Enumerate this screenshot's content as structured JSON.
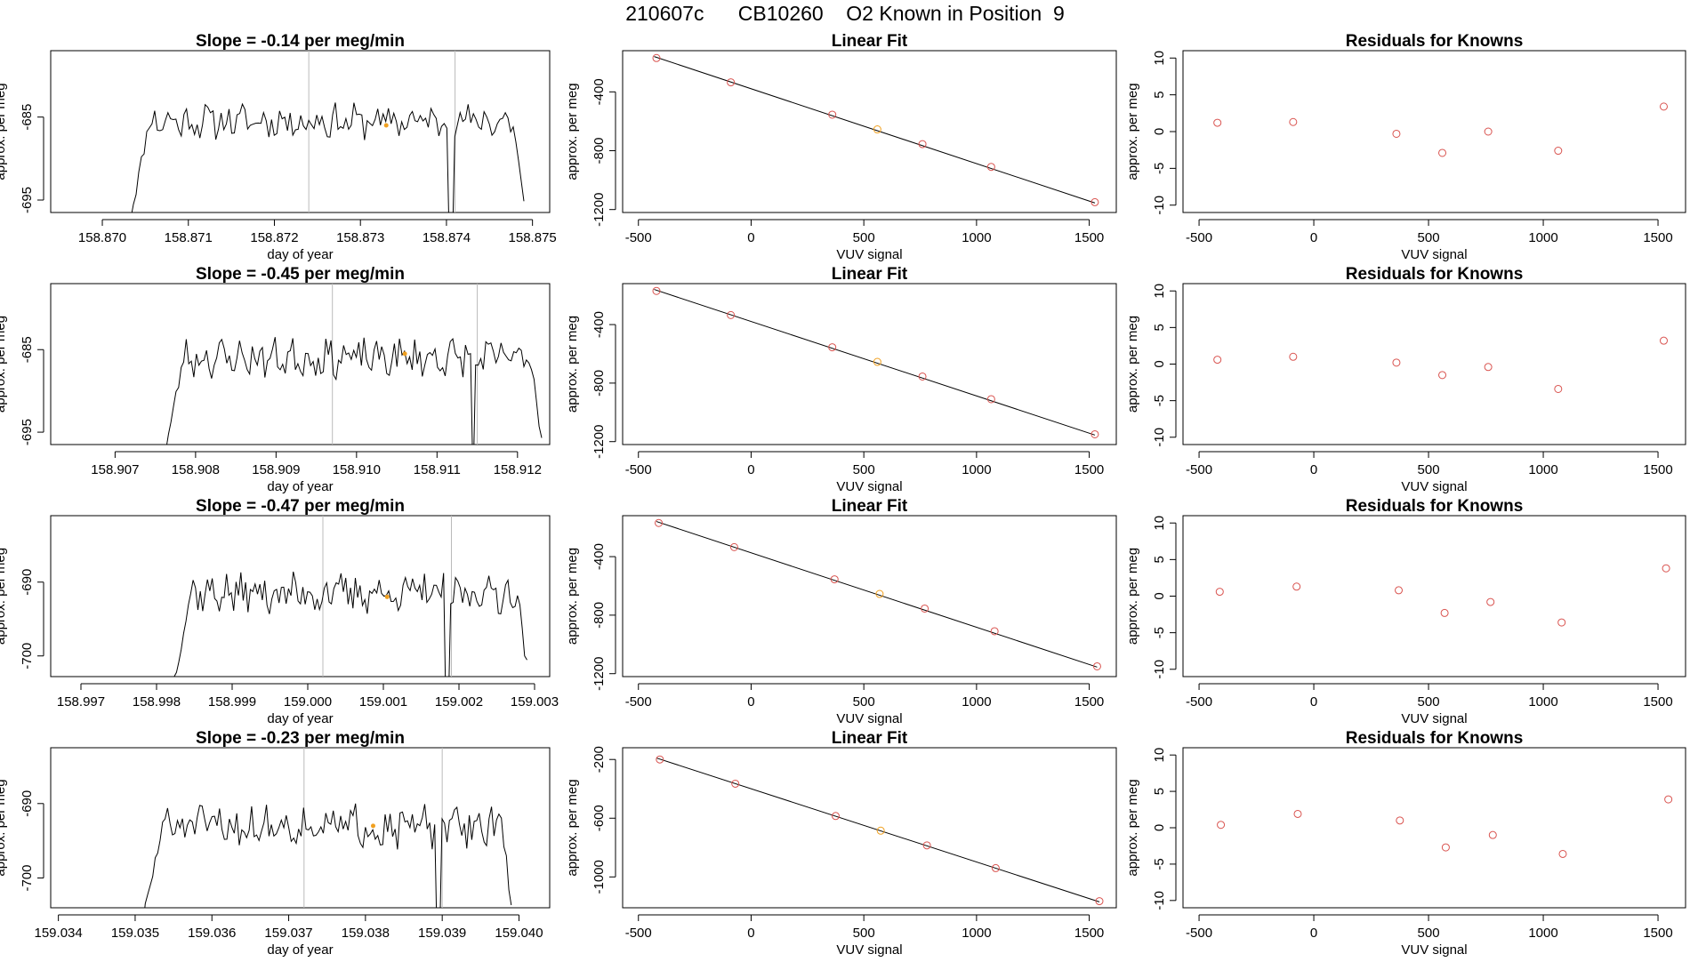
{
  "figure": {
    "title": "210607c      CB10260    O2 Known in Position  9"
  },
  "chart_data": [
    {
      "row": 1,
      "time_series": {
        "type": "line",
        "title": "Slope =  -0.14  per meg/min",
        "xlabel": "day of year",
        "ylabel": "approx. per meg",
        "xlim": [
          158.8694,
          158.8752
        ],
        "ylim": [
          -696.5,
          -677
        ],
        "xticks": [
          "158.870",
          "158.871",
          "158.872",
          "158.873",
          "158.874",
          "158.875"
        ],
        "yticks": [
          "-685",
          "-695"
        ],
        "vlines": [
          158.8724,
          158.8741
        ],
        "highlight": {
          "x": 158.8733,
          "y": -686
        },
        "data": {
          "x_start": 158.8703,
          "x_end": 158.8749,
          "n": 150,
          "baseline": -685.5,
          "amplitude": 1.7,
          "seed": 11,
          "dropout": 158.87405
        }
      },
      "linear_fit": {
        "type": "scatter",
        "title": "Linear Fit",
        "xlabel": "VUV signal",
        "ylabel": "approx. per meg",
        "xlim": [
          -570,
          1620
        ],
        "ylim": [
          -1220,
          -120
        ],
        "xticks": [
          -500,
          0,
          500,
          1000,
          1500
        ],
        "yticks": [
          -400,
          -800,
          -1200
        ],
        "points": [
          {
            "x": -420,
            "y": -170
          },
          {
            "x": -90,
            "y": -335
          },
          {
            "x": 360,
            "y": -555
          },
          {
            "x": 560,
            "y": -655
          },
          {
            "x": 760,
            "y": -755
          },
          {
            "x": 1065,
            "y": -910
          },
          {
            "x": 1525,
            "y": -1150
          }
        ],
        "highlight_index": 3,
        "fit_line": [
          [
            -430,
            -160
          ],
          [
            1525,
            -1155
          ]
        ]
      },
      "residuals": {
        "type": "scatter",
        "title": "Residuals for Knowns",
        "xlabel": "VUV signal",
        "ylabel": "approx. per meg",
        "xlim": [
          -570,
          1620
        ],
        "ylim": [
          -11,
          11
        ],
        "xticks": [
          -500,
          0,
          500,
          1000,
          1500
        ],
        "yticks": [
          10,
          5,
          0,
          -5,
          -10
        ],
        "points": [
          {
            "x": -420,
            "y": 1.2
          },
          {
            "x": -90,
            "y": 1.3
          },
          {
            "x": 360,
            "y": -0.3
          },
          {
            "x": 560,
            "y": -2.9
          },
          {
            "x": 760,
            "y": 0.0
          },
          {
            "x": 1065,
            "y": -2.6
          },
          {
            "x": 1525,
            "y": 3.4
          }
        ]
      }
    },
    {
      "row": 2,
      "time_series": {
        "type": "line",
        "title": "Slope =  -0.45  per meg/min",
        "xlabel": "day of year",
        "ylabel": "approx. per meg",
        "xlim": [
          158.9062,
          158.9124
        ],
        "ylim": [
          -696.5,
          -677
        ],
        "xticks": [
          "158.907",
          "158.908",
          "158.909",
          "158.910",
          "158.911",
          "158.912"
        ],
        "yticks": [
          "-685",
          "-695"
        ],
        "vlines": [
          158.9097,
          158.9115
        ],
        "highlight": {
          "x": 158.9106,
          "y": -685.5
        },
        "data": {
          "x_start": 158.9076,
          "x_end": 158.9123,
          "n": 150,
          "baseline": -686,
          "amplitude": 1.9,
          "seed": 23,
          "dropout": 158.91145
        }
      },
      "linear_fit": {
        "type": "scatter",
        "title": "Linear Fit",
        "xlabel": "VUV signal",
        "ylabel": "approx. per meg",
        "xlim": [
          -570,
          1620
        ],
        "ylim": [
          -1220,
          -120
        ],
        "xticks": [
          -500,
          0,
          500,
          1000,
          1500
        ],
        "yticks": [
          -400,
          -800,
          -1200
        ],
        "points": [
          {
            "x": -420,
            "y": -170
          },
          {
            "x": -90,
            "y": -335
          },
          {
            "x": 360,
            "y": -555
          },
          {
            "x": 560,
            "y": -655
          },
          {
            "x": 760,
            "y": -755
          },
          {
            "x": 1065,
            "y": -910
          },
          {
            "x": 1525,
            "y": -1150
          }
        ],
        "highlight_index": 3,
        "fit_line": [
          [
            -430,
            -160
          ],
          [
            1525,
            -1155
          ]
        ]
      },
      "residuals": {
        "type": "scatter",
        "title": "Residuals for Knowns",
        "xlabel": "VUV signal",
        "ylabel": "approx. per meg",
        "xlim": [
          -570,
          1620
        ],
        "ylim": [
          -11,
          11
        ],
        "xticks": [
          -500,
          0,
          500,
          1000,
          1500
        ],
        "yticks": [
          10,
          5,
          0,
          -5,
          -10
        ],
        "points": [
          {
            "x": -420,
            "y": 0.6
          },
          {
            "x": -90,
            "y": 1.0
          },
          {
            "x": 360,
            "y": 0.2
          },
          {
            "x": 560,
            "y": -1.5
          },
          {
            "x": 760,
            "y": -0.4
          },
          {
            "x": 1065,
            "y": -3.4
          },
          {
            "x": 1525,
            "y": 3.2
          }
        ]
      }
    },
    {
      "row": 3,
      "time_series": {
        "type": "line",
        "title": "Slope =  -0.47  per meg/min",
        "xlabel": "day of year",
        "ylabel": "approx. per meg",
        "xlim": [
          158.9966,
          159.0032
        ],
        "ylim": [
          -702.8,
          -681
        ],
        "xticks": [
          "158.997",
          "158.998",
          "158.999",
          "159.000",
          "159.001",
          "159.002",
          "159.003"
        ],
        "yticks": [
          "-690",
          "-700"
        ],
        "vlines": [
          159.0002,
          159.0019
        ],
        "highlight": {
          "x": 159.00105,
          "y": -692
        },
        "data": {
          "x_start": 158.9982,
          "x_end": 159.0029,
          "n": 150,
          "baseline": -691.5,
          "amplitude": 2.2,
          "seed": 37,
          "dropout": 159.00185
        }
      },
      "linear_fit": {
        "type": "scatter",
        "title": "Linear Fit",
        "xlabel": "VUV signal",
        "ylabel": "approx. per meg",
        "xlim": [
          -570,
          1620
        ],
        "ylim": [
          -1220,
          -120
        ],
        "xticks": [
          -500,
          0,
          500,
          1000,
          1500
        ],
        "yticks": [
          -400,
          -800,
          -1200
        ],
        "points": [
          {
            "x": -410,
            "y": -170
          },
          {
            "x": -75,
            "y": -335
          },
          {
            "x": 370,
            "y": -555
          },
          {
            "x": 570,
            "y": -655
          },
          {
            "x": 770,
            "y": -755
          },
          {
            "x": 1080,
            "y": -910
          },
          {
            "x": 1535,
            "y": -1150
          }
        ],
        "highlight_index": 3,
        "fit_line": [
          [
            -420,
            -160
          ],
          [
            1535,
            -1155
          ]
        ]
      },
      "residuals": {
        "type": "scatter",
        "title": "Residuals for Knowns",
        "xlabel": "VUV signal",
        "ylabel": "approx. per meg",
        "xlim": [
          -570,
          1620
        ],
        "ylim": [
          -11,
          11
        ],
        "xticks": [
          -500,
          0,
          500,
          1000,
          1500
        ],
        "yticks": [
          10,
          5,
          0,
          -5,
          -10
        ],
        "points": [
          {
            "x": -410,
            "y": 0.6
          },
          {
            "x": -75,
            "y": 1.3
          },
          {
            "x": 370,
            "y": 0.8
          },
          {
            "x": 570,
            "y": -2.3
          },
          {
            "x": 770,
            "y": -0.8
          },
          {
            "x": 1080,
            "y": -3.6
          },
          {
            "x": 1535,
            "y": 3.8
          }
        ]
      }
    },
    {
      "row": 4,
      "time_series": {
        "type": "line",
        "title": "Slope =  -0.23  per meg/min",
        "xlabel": "day of year",
        "ylabel": "approx. per meg",
        "xlim": [
          159.0339,
          159.0404
        ],
        "ylim": [
          -704,
          -682.5
        ],
        "xticks": [
          "159.034",
          "159.035",
          "159.036",
          "159.037",
          "159.038",
          "159.039",
          "159.040"
        ],
        "yticks": [
          "-690",
          "-700"
        ],
        "vlines": [
          159.0372,
          159.039
        ],
        "highlight": {
          "x": 159.0381,
          "y": -693
        },
        "data": {
          "x_start": 159.0351,
          "x_end": 159.0399,
          "n": 150,
          "baseline": -693,
          "amplitude": 2.3,
          "seed": 51,
          "dropout": 159.03895
        }
      },
      "linear_fit": {
        "type": "scatter",
        "title": "Linear Fit",
        "xlabel": "VUV signal",
        "ylabel": "approx. per meg",
        "xlim": [
          -570,
          1620
        ],
        "ylim": [
          -1210,
          -120
        ],
        "xticks": [
          -500,
          0,
          500,
          1000,
          1500
        ],
        "yticks": [
          -200,
          -600,
          -1000
        ],
        "points": [
          {
            "x": -405,
            "y": -200
          },
          {
            "x": -70,
            "y": -365
          },
          {
            "x": 375,
            "y": -585
          },
          {
            "x": 575,
            "y": -685
          },
          {
            "x": 780,
            "y": -785
          },
          {
            "x": 1085,
            "y": -940
          },
          {
            "x": 1545,
            "y": -1165
          }
        ],
        "highlight_index": 3,
        "fit_line": [
          [
            -420,
            -190
          ],
          [
            1545,
            -1170
          ]
        ]
      },
      "residuals": {
        "type": "scatter",
        "title": "Residuals for Knowns",
        "xlabel": "VUV signal",
        "ylabel": "approx. per meg",
        "xlim": [
          -570,
          1620
        ],
        "ylim": [
          -11,
          11
        ],
        "xticks": [
          -500,
          0,
          500,
          1000,
          1500
        ],
        "yticks": [
          10,
          5,
          0,
          -5,
          -10
        ],
        "points": [
          {
            "x": -405,
            "y": 0.4
          },
          {
            "x": -70,
            "y": 1.9
          },
          {
            "x": 375,
            "y": 1.0
          },
          {
            "x": 575,
            "y": -2.7
          },
          {
            "x": 780,
            "y": -1.0
          },
          {
            "x": 1085,
            "y": -3.6
          },
          {
            "x": 1545,
            "y": 3.9
          }
        ]
      }
    }
  ],
  "colors": {
    "line": "#000000",
    "marker": "#d9534f",
    "highlight": "#f0a020",
    "vline": "#bbbbbb"
  }
}
